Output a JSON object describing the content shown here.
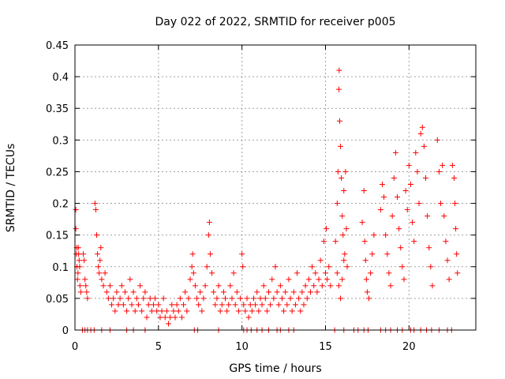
{
  "chart_data": {
    "type": "scatter",
    "title": "Day 022 of 2022, SRMTID for receiver p005",
    "xlabel": "GPS time / hours",
    "ylabel": "SRMTID / TECUs",
    "xlim": [
      0,
      24
    ],
    "ylim": [
      0,
      0.45
    ],
    "xticks": [
      0,
      5,
      10,
      15,
      20
    ],
    "yticks": [
      0,
      0.05,
      0.1,
      0.15,
      0.2,
      0.25,
      0.3,
      0.35,
      0.4,
      0.45
    ],
    "xtick_labels": [
      "0",
      "5",
      "10",
      "15",
      "20"
    ],
    "ytick_labels": [
      "0",
      "0.05",
      "0.1",
      "0.15",
      "0.2",
      "0.25",
      "0.3",
      "0.35",
      "0.4",
      "0.45"
    ],
    "grid": true,
    "marker": "+",
    "marker_color": "#ff0000",
    "series": [
      {
        "name": "SRMTID",
        "points": [
          [
            0.05,
            0.16
          ],
          [
            0.05,
            0.19
          ],
          [
            0.08,
            0.12
          ],
          [
            0.1,
            0.13
          ],
          [
            0.12,
            0.1
          ],
          [
            0.15,
            0.08
          ],
          [
            0.18,
            0.09
          ],
          [
            0.2,
            0.13
          ],
          [
            0.22,
            0.12
          ],
          [
            0.25,
            0.11
          ],
          [
            0.28,
            0.1
          ],
          [
            0.3,
            0.07
          ],
          [
            0.35,
            0.06
          ],
          [
            0.5,
            0.12
          ],
          [
            0.55,
            0.11
          ],
          [
            0.6,
            0.08
          ],
          [
            0.65,
            0.07
          ],
          [
            0.7,
            0.06
          ],
          [
            0.75,
            0.05
          ],
          [
            1.2,
            0.2
          ],
          [
            1.25,
            0.19
          ],
          [
            1.3,
            0.15
          ],
          [
            1.35,
            0.12
          ],
          [
            1.4,
            0.1
          ],
          [
            1.45,
            0.09
          ],
          [
            1.5,
            0.11
          ],
          [
            1.55,
            0.13
          ],
          [
            1.6,
            0.08
          ],
          [
            1.7,
            0.07
          ],
          [
            1.8,
            0.09
          ],
          [
            1.9,
            0.06
          ],
          [
            2.0,
            0.05
          ],
          [
            2.1,
            0.07
          ],
          [
            2.2,
            0.04
          ],
          [
            2.3,
            0.05
          ],
          [
            2.4,
            0.03
          ],
          [
            2.5,
            0.06
          ],
          [
            2.6,
            0.04
          ],
          [
            2.7,
            0.05
          ],
          [
            2.8,
            0.07
          ],
          [
            2.9,
            0.04
          ],
          [
            3.0,
            0.06
          ],
          [
            3.1,
            0.03
          ],
          [
            3.2,
            0.05
          ],
          [
            3.3,
            0.08
          ],
          [
            3.4,
            0.04
          ],
          [
            3.5,
            0.06
          ],
          [
            3.6,
            0.03
          ],
          [
            3.7,
            0.05
          ],
          [
            3.8,
            0.04
          ],
          [
            3.9,
            0.07
          ],
          [
            4.0,
            0.03
          ],
          [
            4.1,
            0.05
          ],
          [
            4.2,
            0.06
          ],
          [
            4.3,
            0.02
          ],
          [
            4.4,
            0.04
          ],
          [
            4.5,
            0.05
          ],
          [
            4.6,
            0.03
          ],
          [
            4.7,
            0.04
          ],
          [
            4.8,
            0.05
          ],
          [
            4.9,
            0.03
          ],
          [
            5.0,
            0.04
          ],
          [
            5.1,
            0.02
          ],
          [
            5.2,
            0.03
          ],
          [
            5.3,
            0.05
          ],
          [
            5.4,
            0.02
          ],
          [
            5.5,
            0.03
          ],
          [
            5.6,
            0.01
          ],
          [
            5.7,
            0.02
          ],
          [
            5.8,
            0.04
          ],
          [
            5.9,
            0.03
          ],
          [
            6.0,
            0.02
          ],
          [
            6.1,
            0.04
          ],
          [
            6.2,
            0.03
          ],
          [
            6.3,
            0.05
          ],
          [
            6.4,
            0.02
          ],
          [
            6.5,
            0.04
          ],
          [
            6.6,
            0.06
          ],
          [
            6.7,
            0.03
          ],
          [
            6.8,
            0.05
          ],
          [
            6.9,
            0.08
          ],
          [
            7.0,
            0.1
          ],
          [
            7.05,
            0.12
          ],
          [
            7.1,
            0.09
          ],
          [
            7.2,
            0.07
          ],
          [
            7.3,
            0.05
          ],
          [
            7.4,
            0.04
          ],
          [
            7.5,
            0.06
          ],
          [
            7.6,
            0.03
          ],
          [
            7.7,
            0.05
          ],
          [
            7.8,
            0.07
          ],
          [
            7.9,
            0.1
          ],
          [
            8.0,
            0.15
          ],
          [
            8.05,
            0.17
          ],
          [
            8.1,
            0.12
          ],
          [
            8.2,
            0.09
          ],
          [
            8.3,
            0.06
          ],
          [
            8.4,
            0.04
          ],
          [
            8.5,
            0.05
          ],
          [
            8.6,
            0.07
          ],
          [
            8.7,
            0.03
          ],
          [
            8.8,
            0.04
          ],
          [
            8.9,
            0.06
          ],
          [
            9.0,
            0.05
          ],
          [
            9.1,
            0.03
          ],
          [
            9.2,
            0.04
          ],
          [
            9.3,
            0.07
          ],
          [
            9.4,
            0.05
          ],
          [
            9.5,
            0.09
          ],
          [
            9.6,
            0.04
          ],
          [
            9.7,
            0.06
          ],
          [
            9.8,
            0.03
          ],
          [
            9.9,
            0.05
          ],
          [
            10.0,
            0.12
          ],
          [
            10.05,
            0.1
          ],
          [
            10.1,
            0.04
          ],
          [
            10.2,
            0.03
          ],
          [
            10.3,
            0.05
          ],
          [
            10.4,
            0.02
          ],
          [
            10.5,
            0.04
          ],
          [
            10.6,
            0.03
          ],
          [
            10.7,
            0.05
          ],
          [
            10.8,
            0.04
          ],
          [
            10.9,
            0.06
          ],
          [
            11.0,
            0.03
          ],
          [
            11.1,
            0.05
          ],
          [
            11.2,
            0.04
          ],
          [
            11.3,
            0.07
          ],
          [
            11.4,
            0.05
          ],
          [
            11.5,
            0.03
          ],
          [
            11.6,
            0.06
          ],
          [
            11.7,
            0.04
          ],
          [
            11.8,
            0.08
          ],
          [
            11.9,
            0.05
          ],
          [
            12.0,
            0.1
          ],
          [
            12.1,
            0.06
          ],
          [
            12.2,
            0.04
          ],
          [
            12.3,
            0.07
          ],
          [
            12.4,
            0.05
          ],
          [
            12.5,
            0.03
          ],
          [
            12.6,
            0.06
          ],
          [
            12.7,
            0.04
          ],
          [
            12.8,
            0.08
          ],
          [
            12.9,
            0.05
          ],
          [
            13.0,
            0.03
          ],
          [
            13.1,
            0.06
          ],
          [
            13.2,
            0.04
          ],
          [
            13.3,
            0.09
          ],
          [
            13.4,
            0.05
          ],
          [
            13.5,
            0.03
          ],
          [
            13.6,
            0.06
          ],
          [
            13.7,
            0.04
          ],
          [
            13.8,
            0.07
          ],
          [
            13.9,
            0.05
          ],
          [
            14.0,
            0.08
          ],
          [
            14.1,
            0.06
          ],
          [
            14.2,
            0.1
          ],
          [
            14.3,
            0.07
          ],
          [
            14.4,
            0.09
          ],
          [
            14.5,
            0.06
          ],
          [
            14.6,
            0.08
          ],
          [
            14.7,
            0.11
          ],
          [
            14.8,
            0.07
          ],
          [
            14.9,
            0.14
          ],
          [
            15.0,
            0.09
          ],
          [
            15.05,
            0.16
          ],
          [
            15.1,
            0.08
          ],
          [
            15.2,
            0.1
          ],
          [
            15.3,
            0.07
          ],
          [
            15.6,
            0.14
          ],
          [
            15.7,
            0.2
          ],
          [
            15.75,
            0.25
          ],
          [
            15.8,
            0.38
          ],
          [
            15.82,
            0.41
          ],
          [
            15.85,
            0.33
          ],
          [
            15.9,
            0.29
          ],
          [
            15.95,
            0.24
          ],
          [
            16.0,
            0.18
          ],
          [
            16.05,
            0.15
          ],
          [
            16.1,
            0.22
          ],
          [
            16.15,
            0.12
          ],
          [
            16.2,
            0.25
          ],
          [
            16.25,
            0.16
          ],
          [
            16.3,
            0.1
          ],
          [
            15.7,
            0.09
          ],
          [
            15.8,
            0.07
          ],
          [
            15.9,
            0.05
          ],
          [
            16.0,
            0.08
          ],
          [
            16.1,
            0.11
          ],
          [
            17.2,
            0.17
          ],
          [
            17.3,
            0.22
          ],
          [
            17.35,
            0.14
          ],
          [
            17.4,
            0.11
          ],
          [
            17.45,
            0.08
          ],
          [
            17.5,
            0.06
          ],
          [
            17.6,
            0.05
          ],
          [
            17.7,
            0.09
          ],
          [
            17.8,
            0.12
          ],
          [
            17.9,
            0.15
          ],
          [
            18.3,
            0.19
          ],
          [
            18.4,
            0.23
          ],
          [
            18.5,
            0.21
          ],
          [
            18.6,
            0.15
          ],
          [
            18.7,
            0.12
          ],
          [
            18.8,
            0.09
          ],
          [
            18.9,
            0.07
          ],
          [
            19.0,
            0.18
          ],
          [
            19.1,
            0.24
          ],
          [
            19.2,
            0.28
          ],
          [
            19.3,
            0.21
          ],
          [
            19.4,
            0.16
          ],
          [
            19.5,
            0.13
          ],
          [
            19.6,
            0.1
          ],
          [
            19.7,
            0.08
          ],
          [
            19.8,
            0.22
          ],
          [
            19.9,
            0.19
          ],
          [
            20.0,
            0.26
          ],
          [
            20.1,
            0.23
          ],
          [
            20.2,
            0.17
          ],
          [
            20.3,
            0.14
          ],
          [
            20.4,
            0.28
          ],
          [
            20.5,
            0.25
          ],
          [
            20.6,
            0.2
          ],
          [
            20.7,
            0.31
          ],
          [
            20.8,
            0.32
          ],
          [
            20.9,
            0.29
          ],
          [
            21.0,
            0.24
          ],
          [
            21.1,
            0.18
          ],
          [
            21.2,
            0.13
          ],
          [
            21.3,
            0.1
          ],
          [
            21.4,
            0.07
          ],
          [
            21.7,
            0.3
          ],
          [
            21.8,
            0.25
          ],
          [
            21.9,
            0.2
          ],
          [
            22.0,
            0.26
          ],
          [
            22.1,
            0.18
          ],
          [
            22.2,
            0.14
          ],
          [
            22.3,
            0.11
          ],
          [
            22.4,
            0.08
          ],
          [
            22.6,
            0.26
          ],
          [
            22.7,
            0.24
          ],
          [
            22.75,
            0.2
          ],
          [
            22.8,
            0.16
          ],
          [
            22.85,
            0.12
          ],
          [
            22.9,
            0.09
          ]
        ]
      }
    ],
    "zero_rug_x": [
      0.45,
      0.6,
      0.75,
      0.95,
      1.15,
      1.6,
      2.1,
      3.1,
      3.5,
      4.2,
      7.15,
      7.35,
      8.6,
      10.1,
      10.3,
      10.55,
      10.9,
      11.2,
      11.6,
      12.1,
      12.3,
      12.8,
      13.1,
      15.55,
      16.1,
      16.7,
      16.95,
      17.3,
      17.55,
      18.3,
      18.6,
      18.9,
      19.3,
      19.6,
      20.1,
      20.3,
      20.7,
      21.05,
      21.35,
      21.8,
      22.3,
      22.55
    ]
  }
}
